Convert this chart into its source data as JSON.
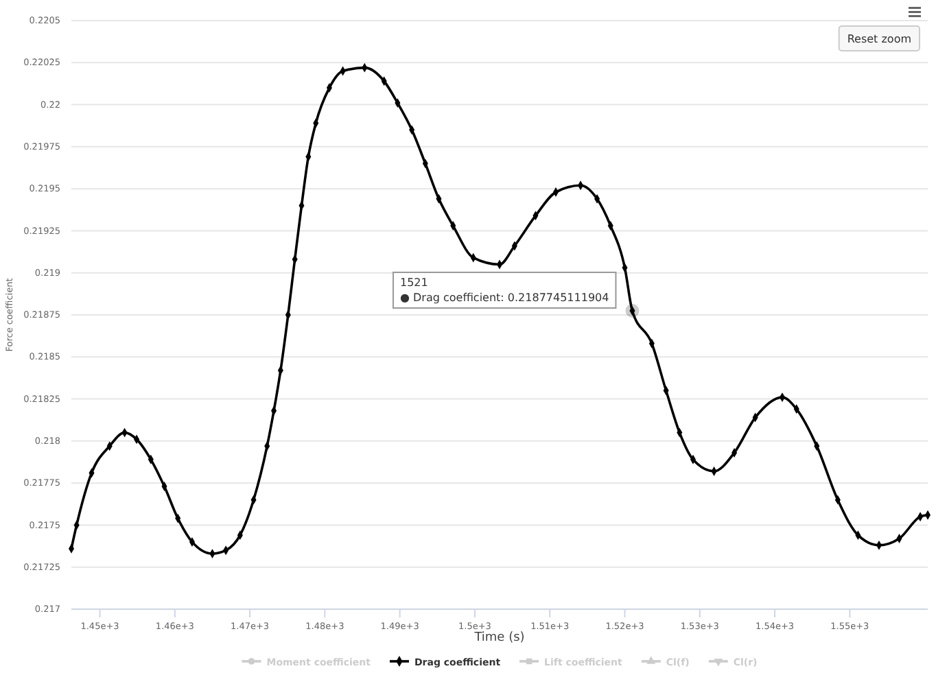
{
  "chart_data": {
    "type": "line",
    "xlabel": "Time (s)",
    "ylabel": "Force coefficient",
    "xlim": [
      1446.2,
      1560.4
    ],
    "xticks": [
      {
        "value": 1450,
        "label": "1.45e+3"
      },
      {
        "value": 1460,
        "label": "1.46e+3"
      },
      {
        "value": 1470,
        "label": "1.47e+3"
      },
      {
        "value": 1480,
        "label": "1.48e+3"
      },
      {
        "value": 1490,
        "label": "1.49e+3"
      },
      {
        "value": 1500,
        "label": "1.5e+3"
      },
      {
        "value": 1510,
        "label": "1.51e+3"
      },
      {
        "value": 1520,
        "label": "1.52e+3"
      },
      {
        "value": 1530,
        "label": "1.53e+3"
      },
      {
        "value": 1540,
        "label": "1.54e+3"
      },
      {
        "value": 1550,
        "label": "1.55e+3"
      }
    ],
    "ylim": [
      0.217,
      0.2205
    ],
    "yticks": [
      0.217,
      0.21725,
      0.2175,
      0.21775,
      0.218,
      0.21825,
      0.2185,
      0.21875,
      0.219,
      0.21925,
      0.2195,
      0.21975,
      0.22,
      0.22025,
      0.2205
    ],
    "grid": "y",
    "legend": "bottom",
    "x": [
      1446.2,
      1446.9,
      1448.9,
      1451.3,
      1453.3,
      1454.9,
      1456.8,
      1458.6,
      1460.4,
      1462.3,
      1465.0,
      1466.8,
      1468.7,
      1470.5,
      1472.3,
      1473.2,
      1474.1,
      1475.1,
      1476.0,
      1476.9,
      1477.8,
      1478.8,
      1480.6,
      1482.4,
      1485.3,
      1487.9,
      1489.7,
      1491.6,
      1493.4,
      1495.2,
      1497.1,
      1499.8,
      1503.3,
      1505.3,
      1508.1,
      1510.8,
      1514.1,
      1516.3,
      1518.1,
      1520.0,
      1521,
      1523.6,
      1525.5,
      1527.3,
      1529.1,
      1531.9,
      1534.6,
      1537.4,
      1541.0,
      1542.9,
      1545.6,
      1548.4,
      1551.1,
      1553.9,
      1556.6,
      1559.4,
      1560.4
    ],
    "series": [
      {
        "name": "Moment coefficient",
        "color": "#cccccc",
        "marker": "circle",
        "values": [
          null,
          null,
          null,
          null,
          null,
          null,
          null,
          null,
          null,
          null,
          null,
          null,
          null,
          null,
          null,
          null,
          null,
          null,
          null,
          null,
          null,
          null,
          null,
          null,
          null,
          null,
          null,
          null,
          null,
          null,
          null,
          null,
          null,
          null,
          null,
          null,
          null,
          null,
          null,
          null,
          null,
          null,
          null,
          null,
          null,
          null,
          null,
          null,
          null,
          null,
          null,
          null,
          null,
          null,
          null,
          null,
          null
        ]
      },
      {
        "name": "Drag coefficient",
        "color": "#000000",
        "marker": "diamond",
        "values": [
          0.21736,
          0.2175,
          0.21781,
          0.21797,
          0.21805,
          0.21801,
          0.21789,
          0.21773,
          0.21754,
          0.2174,
          0.21733,
          0.21735,
          0.21744,
          0.21765,
          0.21797,
          0.21818,
          0.21842,
          0.21875,
          0.21908,
          0.2194,
          0.21969,
          0.21989,
          0.2201,
          0.2202,
          0.22022,
          0.22014,
          0.22001,
          0.21985,
          0.21965,
          0.21944,
          0.21928,
          0.21909,
          0.21905,
          0.21916,
          0.21934,
          0.21948,
          0.21952,
          0.21944,
          0.21928,
          0.21903,
          0.2187745111904,
          0.21858,
          0.2183,
          0.21805,
          0.21789,
          0.21782,
          0.21793,
          0.21814,
          0.21826,
          0.21819,
          0.21797,
          0.21765,
          0.21744,
          0.21738,
          0.21742,
          0.21755,
          0.21756
        ]
      },
      {
        "name": "Lift coefficient",
        "color": "#cccccc",
        "marker": "square",
        "values": [
          null,
          null,
          null,
          null,
          null,
          null,
          null,
          null,
          null,
          null,
          null,
          null,
          null,
          null,
          null,
          null,
          null,
          null,
          null,
          null,
          null,
          null,
          null,
          null,
          null,
          null,
          null,
          null,
          null,
          null,
          null,
          null,
          null,
          null,
          null,
          null,
          null,
          null,
          null,
          null,
          null,
          null,
          null,
          null,
          null,
          null,
          null,
          null,
          null,
          null,
          null,
          null,
          null,
          null,
          null,
          null,
          null
        ]
      },
      {
        "name": "Cl(f)",
        "color": "#cccccc",
        "marker": "triangle",
        "values": [
          null,
          null,
          null,
          null,
          null,
          null,
          null,
          null,
          null,
          null,
          null,
          null,
          null,
          null,
          null,
          null,
          null,
          null,
          null,
          null,
          null,
          null,
          null,
          null,
          null,
          null,
          null,
          null,
          null,
          null,
          null,
          null,
          null,
          null,
          null,
          null,
          null,
          null,
          null,
          null,
          null,
          null,
          null,
          null,
          null,
          null,
          null,
          null,
          null,
          null,
          null,
          null,
          null,
          null,
          null,
          null,
          null
        ]
      },
      {
        "name": "Cl(r)",
        "color": "#cccccc",
        "marker": "triangle-down",
        "values": [
          null,
          null,
          null,
          null,
          null,
          null,
          null,
          null,
          null,
          null,
          null,
          null,
          null,
          null,
          null,
          null,
          null,
          null,
          null,
          null,
          null,
          null,
          null,
          null,
          null,
          null,
          null,
          null,
          null,
          null,
          null,
          null,
          null,
          null,
          null,
          null,
          null,
          null,
          null,
          null,
          null,
          null,
          null,
          null,
          null,
          null,
          null,
          null,
          null,
          null,
          null,
          null,
          null,
          null,
          null,
          null,
          null
        ]
      }
    ],
    "annotations": [
      "Reset zoom",
      {
        "text": "1521\n● Drag coefficient: 0.2187745111904",
        "x": 1521,
        "y": 0.2187745111904
      }
    ]
  }
}
